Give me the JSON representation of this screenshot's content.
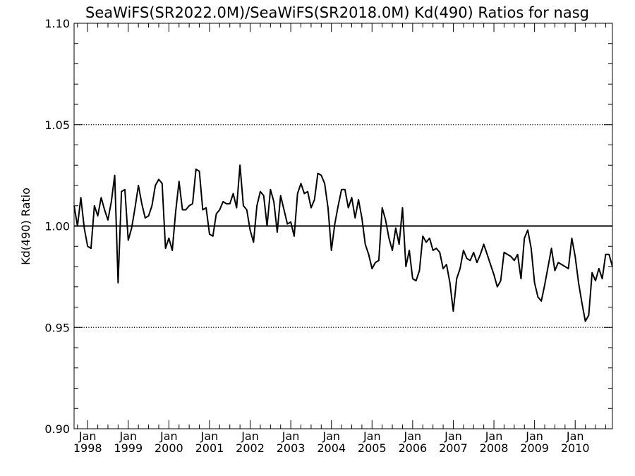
{
  "chart_data": {
    "type": "line",
    "title": "SeaWiFS(SR2022.0M)/SeaWiFS(SR2018.0M)  Kd(490) Ratios for nasg",
    "xlabel": "",
    "ylabel": "Kd(490) Ratio",
    "ylim": [
      0.9,
      1.1
    ],
    "xlim": [
      "1997-09",
      "2010-12"
    ],
    "y_ticks": [
      "0.90",
      "0.95",
      "1.00",
      "1.05",
      "1.10"
    ],
    "x_tick_month": "Jan",
    "x_tick_years": [
      "1998",
      "1999",
      "2000",
      "2001",
      "2002",
      "2003",
      "2004",
      "2005",
      "2006",
      "2007",
      "2008",
      "2009",
      "2010"
    ],
    "reference_lines": [
      {
        "y": 1.0,
        "style": "solid"
      },
      {
        "y": 1.05,
        "style": "dotted"
      },
      {
        "y": 0.95,
        "style": "dotted"
      }
    ],
    "grid": false,
    "series": [
      {
        "start": "1997-09",
        "interval": "month",
        "values": [
          1.01,
          1.0,
          1.014,
          0.999,
          0.99,
          0.989,
          1.01,
          1.005,
          1.014,
          1.008,
          1.003,
          1.012,
          1.025,
          0.972,
          1.017,
          1.018,
          0.993,
          0.999,
          1.009,
          1.02,
          1.011,
          1.004,
          1.005,
          1.01,
          1.02,
          1.023,
          1.021,
          0.989,
          0.994,
          0.988,
          1.007,
          1.022,
          1.008,
          1.008,
          1.01,
          1.011,
          1.028,
          1.027,
          1.008,
          1.009,
          0.996,
          0.995,
          1.006,
          1.008,
          1.012,
          1.011,
          1.011,
          1.016,
          1.009,
          1.03,
          1.01,
          1.008,
          0.998,
          0.992,
          1.01,
          1.017,
          1.015,
          1.0,
          1.018,
          1.012,
          0.997,
          1.015,
          1.008,
          1.001,
          1.002,
          0.995,
          1.016,
          1.021,
          1.016,
          1.017,
          1.009,
          1.013,
          1.026,
          1.025,
          1.021,
          1.009,
          0.988,
          1.001,
          1.01,
          1.018,
          1.018,
          1.009,
          1.014,
          1.004,
          1.013,
          1.004,
          0.991,
          0.986,
          0.979,
          0.982,
          0.983,
          1.009,
          1.003,
          0.994,
          0.988,
          0.999,
          0.991,
          1.009,
          0.98,
          0.988,
          0.974,
          0.973,
          0.978,
          0.995,
          0.992,
          0.994,
          0.988,
          0.989,
          0.987,
          0.979,
          0.981,
          0.972,
          0.958,
          0.974,
          0.979,
          0.988,
          0.984,
          0.983,
          0.987,
          0.982,
          0.986,
          0.991,
          0.986,
          0.981,
          0.976,
          0.97,
          0.973,
          0.987,
          0.986,
          0.985,
          0.983,
          0.986,
          0.974,
          0.994,
          0.998,
          0.989,
          0.972,
          0.965,
          0.963,
          0.971,
          0.98,
          0.989,
          0.978,
          0.982,
          0.981,
          0.98,
          0.979,
          0.994,
          0.985,
          0.972,
          0.962,
          0.953,
          0.956,
          0.977,
          0.973,
          0.979,
          0.974,
          0.986,
          0.986,
          0.98
        ]
      }
    ]
  }
}
